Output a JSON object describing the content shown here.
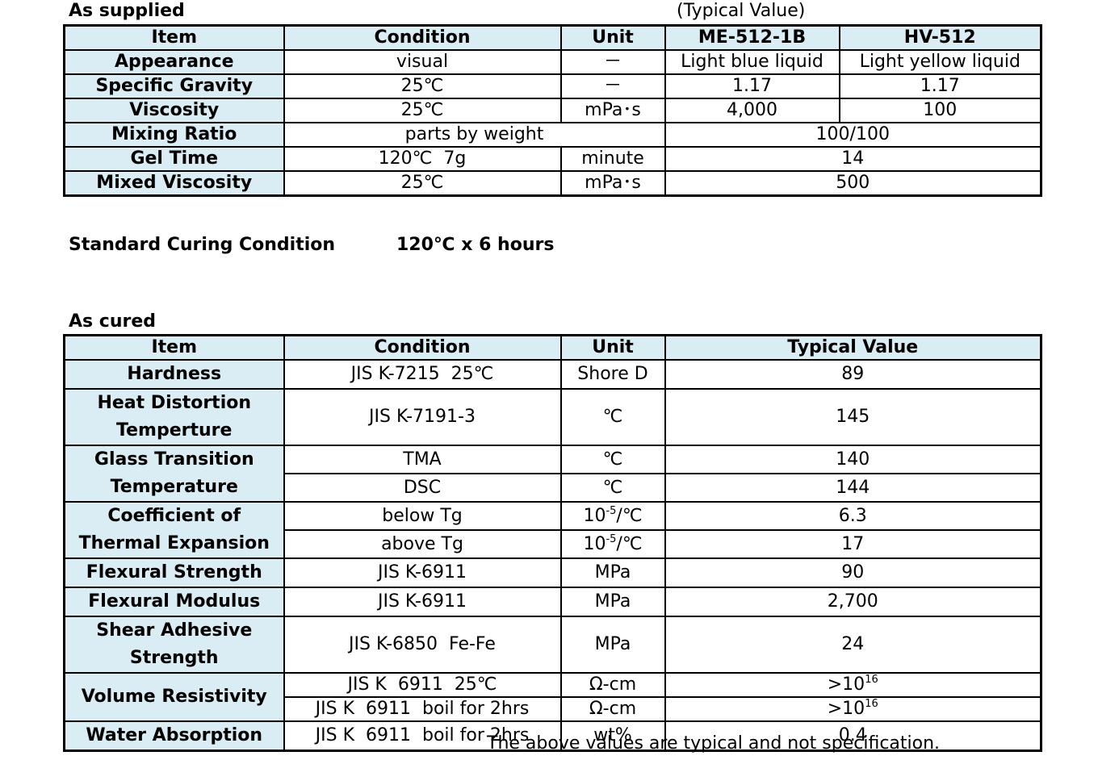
{
  "supplied": {
    "heading": "As supplied",
    "note": "(Typical Value)",
    "header": [
      "Item",
      "Condition",
      "Unit",
      "ME-512-1B",
      "HV-512"
    ],
    "rows": [
      [
        "Appearance",
        "visual",
        "－",
        "Light blue liquid",
        "Light yellow liquid"
      ],
      [
        "Specific Gravity",
        "25℃",
        "－",
        "1.17",
        "1.17"
      ],
      [
        "Viscosity",
        "25℃",
        "mPa･s",
        "4,000",
        "100"
      ],
      [
        "Mixing Ratio",
        "parts by weight",
        "100/100"
      ],
      [
        "Gel Time",
        "120℃  7g",
        "minute",
        "14"
      ],
      [
        "Mixed Viscosity",
        "25℃",
        "mPa･s",
        "500"
      ]
    ]
  },
  "curing": {
    "label": "Standard Curing Condition",
    "value": "120℃ x 6 hours"
  },
  "cured": {
    "heading": "As cured",
    "header": [
      "Item",
      "Condition",
      "Unit",
      "Typical Value"
    ],
    "groups": [
      {
        "item": "Hardness",
        "rows": [
          [
            "JIS K-7215  25℃",
            "Shore D",
            "89"
          ]
        ]
      },
      {
        "item": "Heat Distortion Temperture",
        "rows": [
          [
            "JIS K-7191-3",
            "℃",
            "145"
          ]
        ]
      },
      {
        "item": "Glass Transition Temperature",
        "rows": [
          [
            "TMA",
            "℃",
            "140"
          ],
          [
            "DSC",
            "℃",
            "144"
          ]
        ]
      },
      {
        "item": "Coefficient of Thermal Expansion",
        "rows": [
          [
            "below Tg",
            {
              "base": "10",
              "sup": "-5",
              "rest": "/℃"
            },
            "6.3"
          ],
          [
            "above Tg",
            {
              "base": "10",
              "sup": "-5",
              "rest": "/℃"
            },
            "17"
          ]
        ]
      },
      {
        "item": "Flexural Strength",
        "rows": [
          [
            "JIS K-6911",
            "MPa",
            "90"
          ]
        ]
      },
      {
        "item": "Flexural Modulus",
        "rows": [
          [
            "JIS K-6911",
            "MPa",
            "2,700"
          ]
        ]
      },
      {
        "item": "Shear Adhesive Strength",
        "rows": [
          [
            "JIS K-6850  Fe-Fe",
            "MPa",
            "24"
          ]
        ]
      },
      {
        "item": "Volume Resistivity",
        "rows": [
          [
            "JIS K  6911  25℃",
            "Ω-cm",
            {
              "base": ">10",
              "sup": "16"
            }
          ],
          [
            "JIS K  6911  boil for 2hrs",
            "Ω-cm",
            {
              "base": ">10",
              "sup": "16"
            }
          ]
        ]
      },
      {
        "item": "Water Absorption",
        "rows": [
          [
            "JIS K  6911  boil for 2hrs",
            "wt%",
            "0.4"
          ]
        ]
      }
    ]
  },
  "footnote": "The above values are typical and not specification."
}
